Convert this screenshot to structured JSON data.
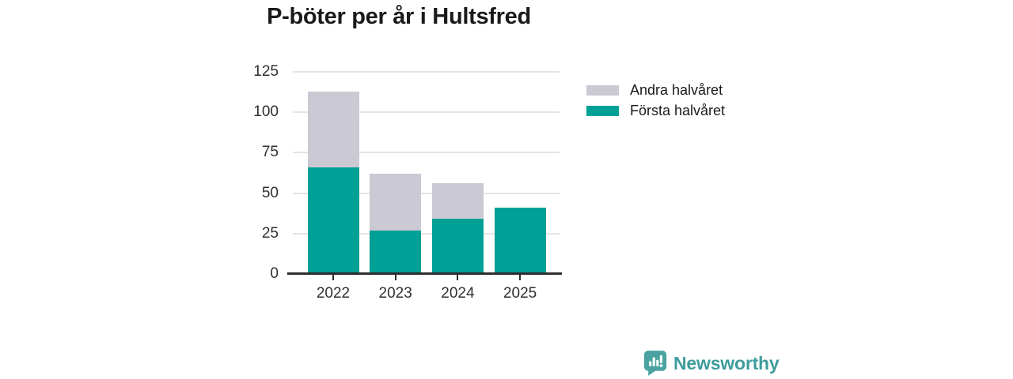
{
  "title": "P-böter per år i Hultsfred",
  "chart_data": {
    "type": "bar",
    "stacked": true,
    "title": "P-böter per år i Hultsfred",
    "categories": [
      "2022",
      "2023",
      "2024",
      "2025"
    ],
    "series": [
      {
        "name": "Första halvåret",
        "color": "#00a096",
        "values": [
          66,
          27,
          34,
          41
        ]
      },
      {
        "name": "Andra halvåret",
        "color": "#cbc9d3",
        "values": [
          47,
          35,
          22,
          0
        ]
      }
    ],
    "totals": [
      113,
      62,
      56,
      41
    ],
    "xlabel": "",
    "ylabel": "",
    "ylim": [
      0,
      125
    ],
    "yticks": [
      0,
      25,
      50,
      75,
      100,
      125
    ],
    "grid": true,
    "legend_position": "right"
  },
  "legend": {
    "items": [
      {
        "label": "Andra halvåret",
        "color": "#cbc9d3"
      },
      {
        "label": "Första halvåret",
        "color": "#00a096"
      }
    ]
  },
  "branding": {
    "logo_text": "Newsworthy",
    "logo_icon": "bar-chart-speech-bubble-icon",
    "color": "#3f9c9c"
  },
  "colors": {
    "axis_line": "#2e2e2e",
    "gridline": "#e4e4e7",
    "text": "#303030",
    "title": "#1a1a1a",
    "background": "#ffffff"
  }
}
